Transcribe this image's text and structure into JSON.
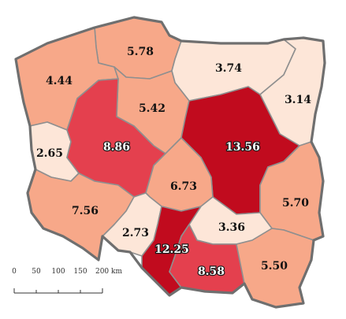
{
  "colors": {
    "very_low": "#fde6d8",
    "low": "#f7a889",
    "medium": "#e4404e",
    "high": "#c10b1e"
  },
  "regions": [
    {
      "id": "zachodniopomorskie",
      "value": "5.78",
      "fill": "#f7a889"
    },
    {
      "id": "pomorskie-west",
      "value": "4.44",
      "fill": "#f7a889"
    },
    {
      "id": "warminsko-mazurskie",
      "value": "3.74",
      "fill": "#fde6d8"
    },
    {
      "id": "podlaskie",
      "value": "3.14",
      "fill": "#fde6d8"
    },
    {
      "id": "kujawsko-pomorskie",
      "value": "5.42",
      "fill": "#f7a889"
    },
    {
      "id": "lubuskie",
      "value": "2.65",
      "fill": "#fde6d8"
    },
    {
      "id": "wielkopolskie",
      "value": "8.86",
      "fill": "#e4404e"
    },
    {
      "id": "mazowieckie",
      "value": "13.56",
      "fill": "#c10b1e"
    },
    {
      "id": "lodzkie",
      "value": "6.73",
      "fill": "#f7a889"
    },
    {
      "id": "lubelskie",
      "value": "5.70",
      "fill": "#f7a889"
    },
    {
      "id": "dolnoslaskie",
      "value": "7.56",
      "fill": "#f7a889"
    },
    {
      "id": "opolskie",
      "value": "2.73",
      "fill": "#fde6d8"
    },
    {
      "id": "swietokrzyskie",
      "value": "3.36",
      "fill": "#fde6d8"
    },
    {
      "id": "slaskie",
      "value": "12.25",
      "fill": "#c10b1e"
    },
    {
      "id": "malopolskie",
      "value": "8.58",
      "fill": "#e4404e"
    },
    {
      "id": "podkarpackie",
      "value": "5.50",
      "fill": "#f7a889"
    }
  ],
  "scale": {
    "ticks": [
      "0",
      "50",
      "100",
      "150",
      "200 km"
    ]
  }
}
